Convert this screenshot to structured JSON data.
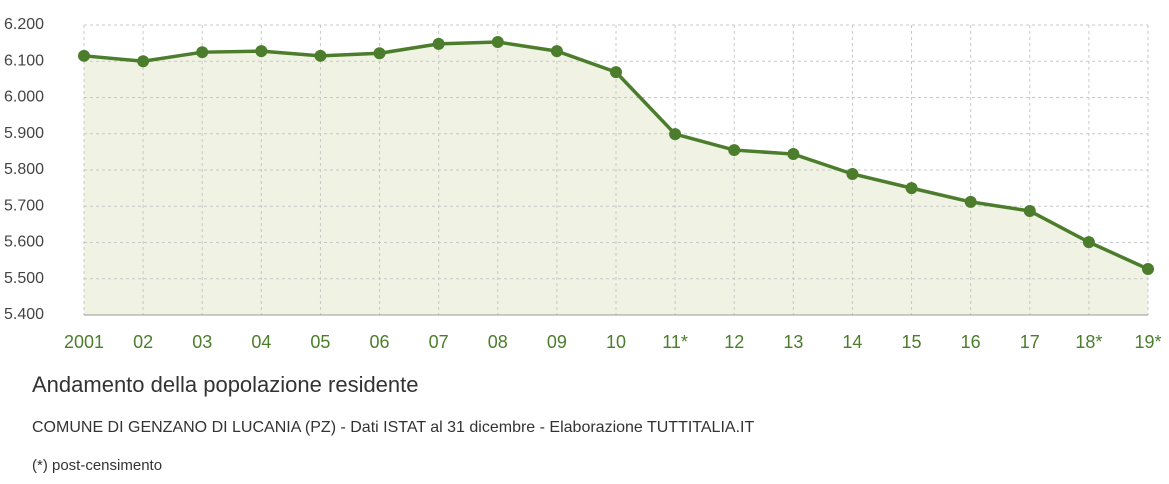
{
  "chart_data": {
    "type": "line",
    "title": "Andamento della popolazione residente",
    "subtitle": "COMUNE DI GENZANO DI LUCANIA (PZ) - Dati ISTAT al 31 dicembre - Elaborazione TUTTITALIA.IT",
    "note": "(*) post-censimento",
    "categories": [
      "2001",
      "02",
      "03",
      "04",
      "05",
      "06",
      "07",
      "08",
      "09",
      "10",
      "11*",
      "12",
      "13",
      "14",
      "15",
      "16",
      "17",
      "18*",
      "19*"
    ],
    "series": [
      {
        "name": "Popolazione residente",
        "color": "#4c7d2c",
        "values": [
          6115,
          6100,
          6125,
          6128,
          6115,
          6122,
          6148,
          6153,
          6128,
          6070,
          5899,
          5855,
          5844,
          5789,
          5750,
          5712,
          5687,
          5601,
          5527
        ]
      }
    ],
    "area_color": "#f0f2e4",
    "ylim": [
      5400,
      6200
    ],
    "yticks": [
      {
        "value": 5400,
        "label": "5.400"
      },
      {
        "value": 5500,
        "label": "5.500"
      },
      {
        "value": 5600,
        "label": "5.600"
      },
      {
        "value": 5700,
        "label": "5.700"
      },
      {
        "value": 5800,
        "label": "5.800"
      },
      {
        "value": 5900,
        "label": "5.900"
      },
      {
        "value": 6000,
        "label": "6.000"
      },
      {
        "value": 6100,
        "label": "6.100"
      },
      {
        "value": 6200,
        "label": "6.200"
      }
    ],
    "grid": true
  }
}
